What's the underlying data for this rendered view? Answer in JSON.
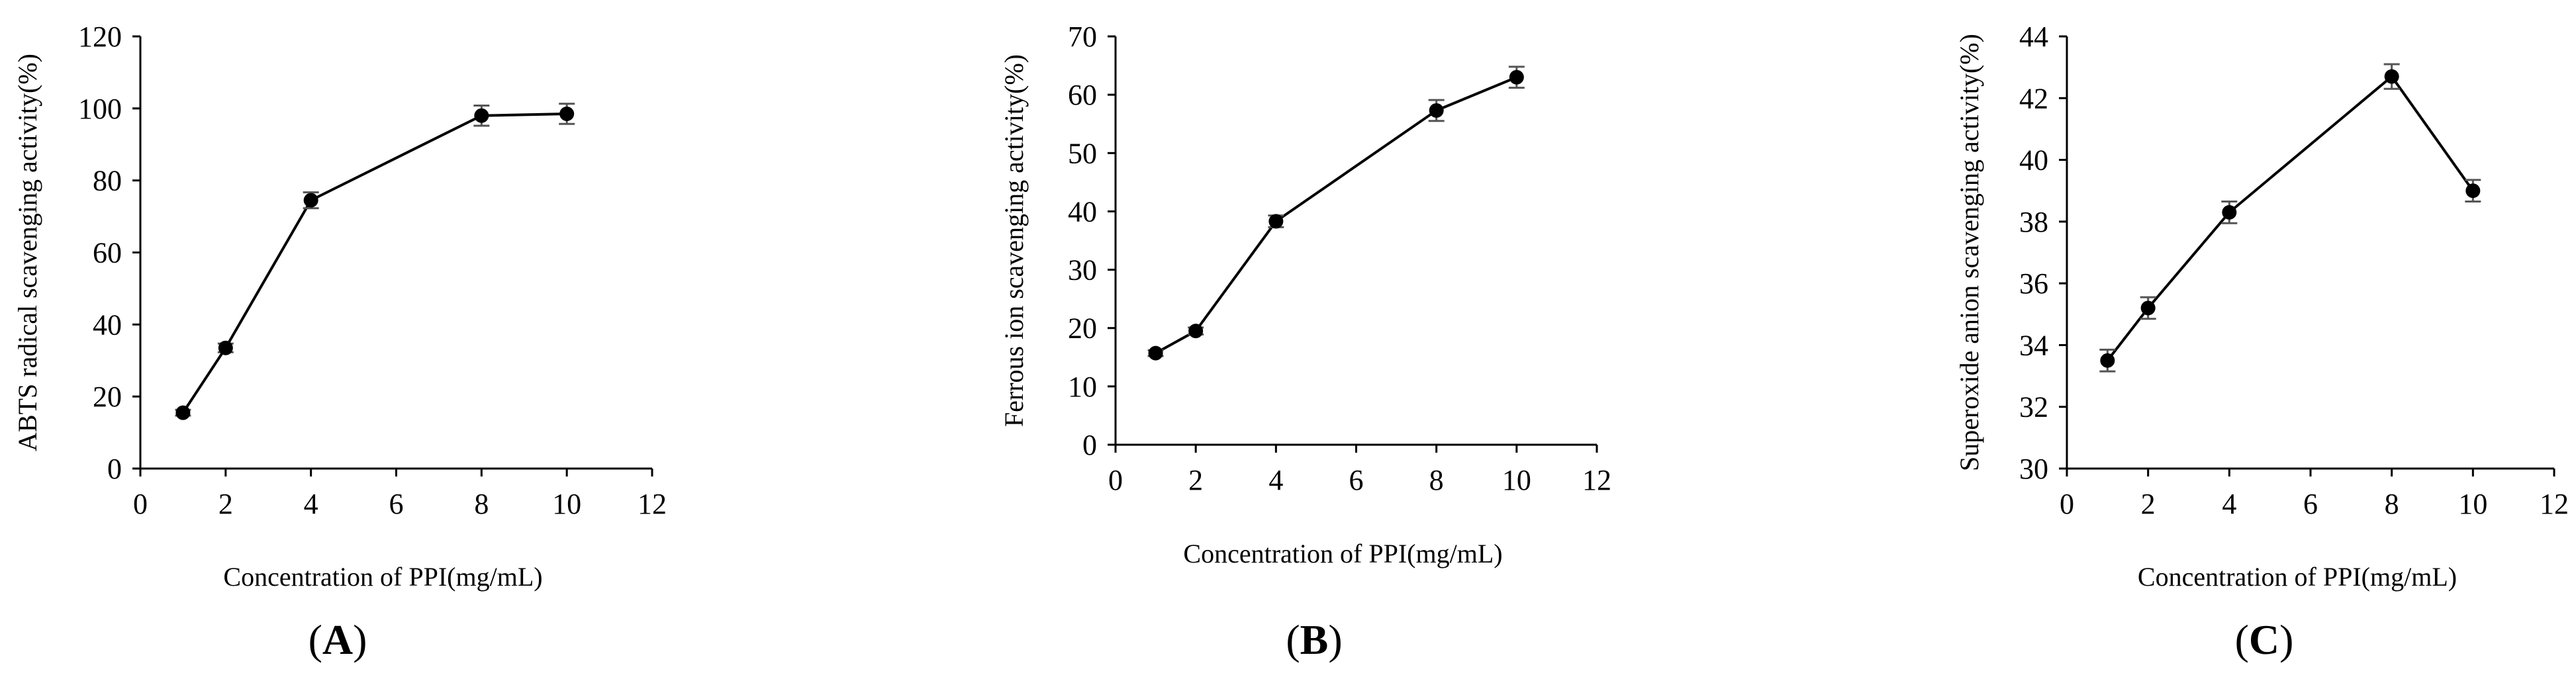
{
  "chart_data": [
    {
      "type": "line",
      "panel": "A",
      "xlabel": "Concentration of PPI(mg/mL)",
      "ylabel": "ABTS radical scavenging  activity(%)",
      "xlim": [
        0,
        12
      ],
      "ylim": [
        0,
        120
      ],
      "xticks": [
        0,
        2,
        4,
        6,
        8,
        10,
        12
      ],
      "yticks": [
        0,
        20,
        40,
        60,
        80,
        100,
        120
      ],
      "series": [
        {
          "name": "ABTS",
          "x": [
            1,
            2,
            4,
            8,
            10
          ],
          "y": [
            15.5,
            33.5,
            74.5,
            98.0,
            98.5
          ],
          "err": [
            0.8,
            1.2,
            2.2,
            2.8,
            2.8
          ]
        }
      ]
    },
    {
      "type": "line",
      "panel": "B",
      "xlabel": "Concentration of PPI(mg/mL)",
      "ylabel": "Ferrous ion scavenging  activity(%)",
      "xlim": [
        0,
        12
      ],
      "ylim": [
        0,
        70
      ],
      "xticks": [
        0,
        2,
        4,
        6,
        8,
        10,
        12
      ],
      "yticks": [
        0,
        10,
        20,
        30,
        40,
        50,
        60,
        70
      ],
      "series": [
        {
          "name": "Ferrous",
          "x": [
            1,
            2,
            4,
            8,
            10
          ],
          "y": [
            15.7,
            19.5,
            38.3,
            57.3,
            63.0
          ],
          "err": [
            0.5,
            0.6,
            1.0,
            1.8,
            1.8
          ]
        }
      ]
    },
    {
      "type": "line",
      "panel": "C",
      "xlabel": "Concentration of PPI(mg/mL)",
      "ylabel": "Superoxide anion  scavenging  activity(%)",
      "xlim": [
        0,
        12
      ],
      "ylim": [
        30,
        44
      ],
      "xticks": [
        0,
        2,
        4,
        6,
        8,
        10,
        12
      ],
      "yticks": [
        30,
        32,
        34,
        36,
        38,
        40,
        42,
        44
      ],
      "series": [
        {
          "name": "Superoxide",
          "x": [
            1,
            2,
            4,
            8,
            10
          ],
          "y": [
            33.5,
            35.2,
            38.3,
            42.7,
            39.0
          ],
          "err": [
            0.35,
            0.35,
            0.35,
            0.4,
            0.35
          ]
        }
      ]
    }
  ],
  "panel_labels": [
    "A",
    "B",
    "C"
  ]
}
